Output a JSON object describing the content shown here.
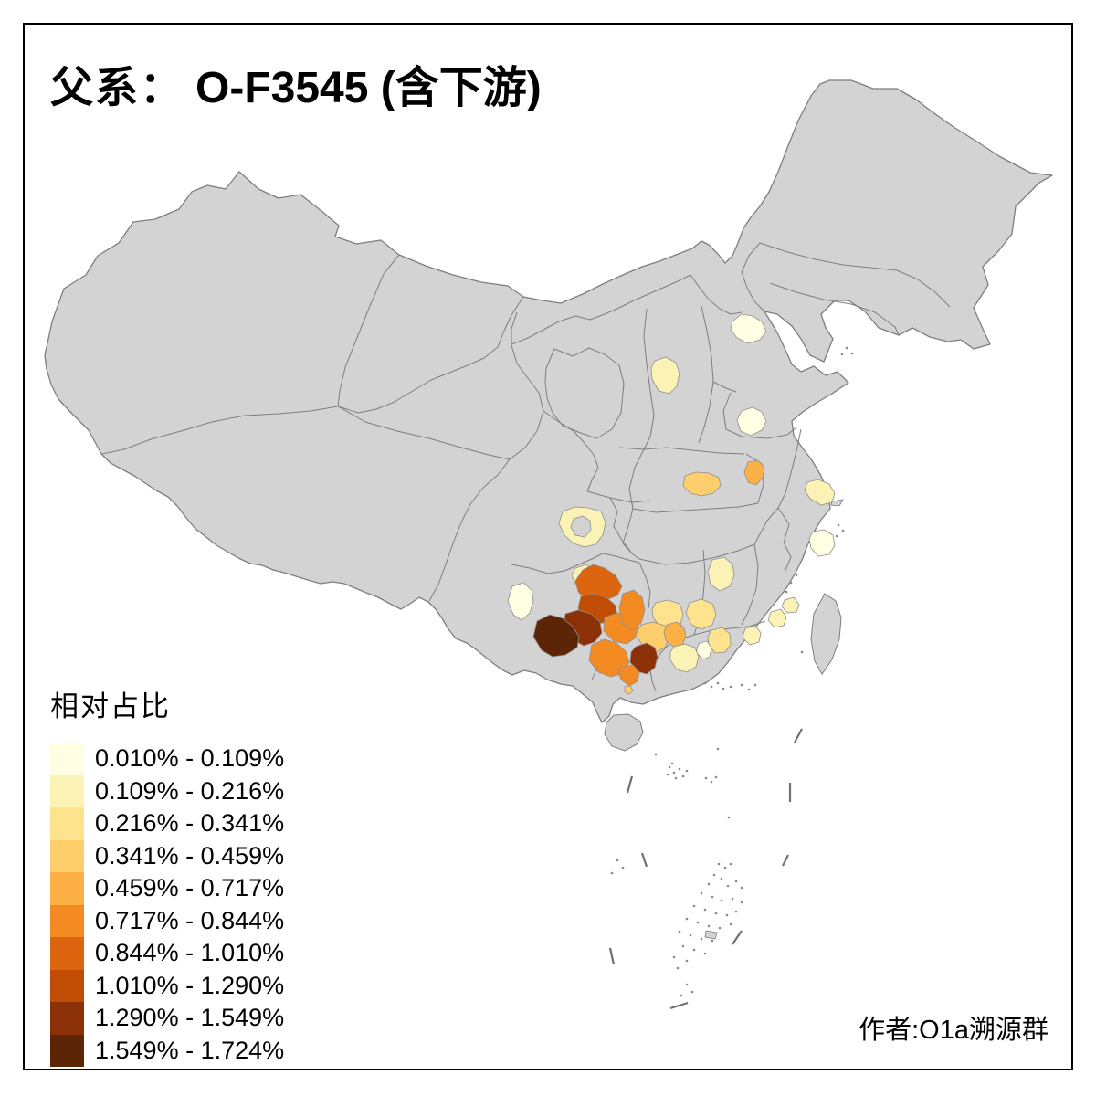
{
  "title": {
    "prefix": "父系：",
    "haplogroup": "O-F3545 (含下游)"
  },
  "legend": {
    "title": "相对占比",
    "classes": [
      {
        "label": "0.010% - 0.109%",
        "color": "#FFFEE3"
      },
      {
        "label": "0.109% - 0.216%",
        "color": "#FBF2B6"
      },
      {
        "label": "0.216% - 0.341%",
        "color": "#FDE38E"
      },
      {
        "label": "0.341% - 0.459%",
        "color": "#FDCE6B"
      },
      {
        "label": "0.459% - 0.717%",
        "color": "#FCB045"
      },
      {
        "label": "0.717% - 0.844%",
        "color": "#F48B22"
      },
      {
        "label": "0.844% - 1.010%",
        "color": "#DD650F"
      },
      {
        "label": "1.010% - 1.290%",
        "color": "#C14D04"
      },
      {
        "label": "1.290% - 1.549%",
        "color": "#8C3007"
      },
      {
        "label": "1.549% - 1.724%",
        "color": "#5C2606"
      }
    ]
  },
  "credit": "作者:O1a溯源群",
  "map": {
    "land_color": "#D3D3D3",
    "border_color": "#7E7E7E",
    "prefecture_border_color": "#8F8F8F",
    "sea_color": "#FFFFFF",
    "frame_color": "#000000"
  }
}
